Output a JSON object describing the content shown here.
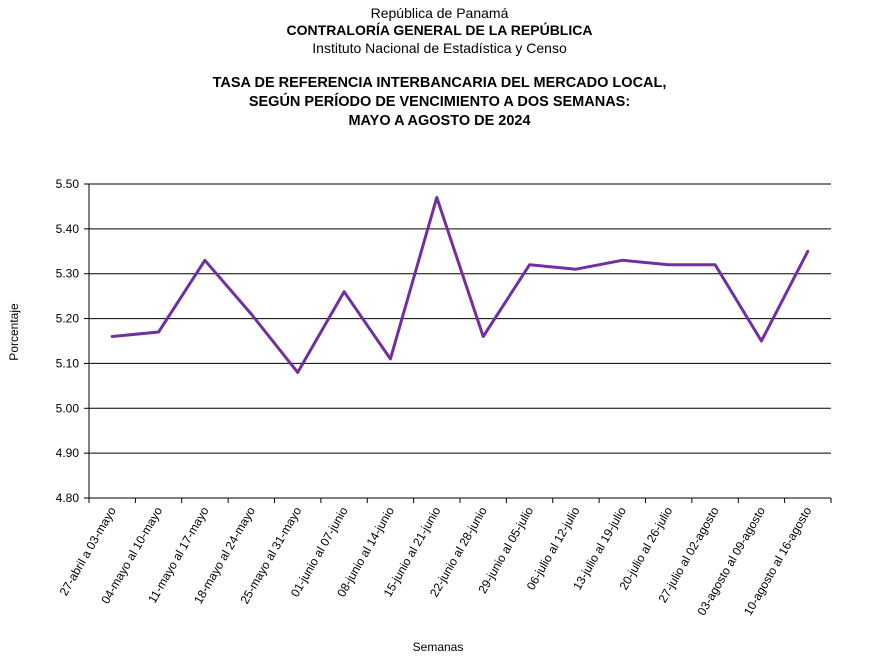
{
  "header": {
    "line1": "República de Panamá",
    "line2": "CONTRALORÍA GENERAL DE LA REPÚBLICA",
    "line3": "Instituto Nacional de Estadística y Censo"
  },
  "chart_data": {
    "type": "line",
    "title": [
      "TASA DE REFERENCIA INTERBANCARIA DEL MERCADO LOCAL,",
      "SEGÚN PERÍODO DE VENCIMIENTO A DOS SEMANAS:",
      "MAYO A AGOSTO DE 2024"
    ],
    "xlabel": "Semanas",
    "ylabel": "Porcentaje",
    "ylim": [
      4.8,
      5.5
    ],
    "yticks": [
      "4.80",
      "4.90",
      "5.00",
      "5.10",
      "5.20",
      "5.30",
      "5.40",
      "5.50"
    ],
    "grid": true,
    "line_color": "#7030A0",
    "categories": [
      "27-abril a 03-mayo",
      "04-mayo al 10-mayo",
      "11-mayo al 17-mayo",
      "18-mayo al 24-mayo",
      "25-mayo al 31-mayo",
      "01-junio al 07-junio",
      "08-junio al 14-junio",
      "15-junio al 21-junio",
      "22-junio al 28-junio",
      "29-junio al 05-julio",
      "06-julio al 12-julio",
      "13-julio al 19-julio",
      "20-julio al 26-julio",
      "27-julio al 02-agosto",
      "03-agosto al 09-agosto",
      "10-agosto al 16-agosto"
    ],
    "values": [
      5.16,
      5.17,
      5.33,
      5.21,
      5.08,
      5.26,
      5.11,
      5.47,
      5.16,
      5.32,
      5.31,
      5.33,
      5.32,
      5.32,
      5.15,
      5.35
    ]
  }
}
